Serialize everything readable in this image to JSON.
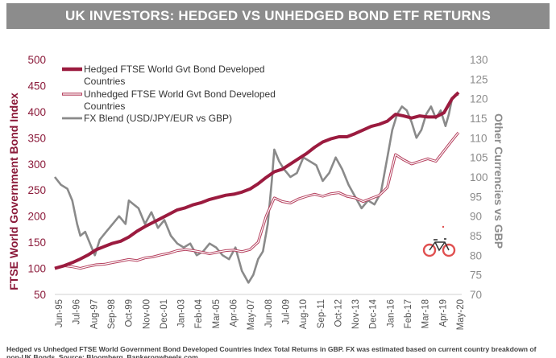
{
  "chart_data": {
    "type": "line",
    "title": "UK INVESTORS: HEDGED VS UNHEDGED BOND ETF RETURNS",
    "ylabel_left": "FTSE World Government Bond Index",
    "ylabel_right": "Other Currencies vs GBP",
    "ylim_left": [
      50,
      500
    ],
    "ylim_right": [
      70,
      130
    ],
    "yticks_left": [
      "50",
      "100",
      "150",
      "200",
      "250",
      "300",
      "350",
      "400",
      "450",
      "500"
    ],
    "yticks_right": [
      "70",
      "75",
      "80",
      "85",
      "90",
      "95",
      "100",
      "105",
      "110",
      "115",
      "120",
      "125",
      "130"
    ],
    "x_ticks": [
      "Jun-95",
      "Jul-96",
      "Aug-97",
      "Sep-98",
      "Oct-99",
      "Nov-00",
      "Dec-01",
      "Jan-03",
      "Feb-04",
      "Mar-05",
      "Apr-06",
      "May-07",
      "Jun-08",
      "Jul-09",
      "Aug-10",
      "Sep-11",
      "Oct-12",
      "Nov-13",
      "Dec-14",
      "Jan-16",
      "Feb-17",
      "Mar-18",
      "Apr-19",
      "May-20"
    ],
    "x_range": [
      1995.42,
      2020.6
    ],
    "series": [
      {
        "name": "Hedged FTSE World Gvt Bond Developed Countries",
        "axis": "left",
        "color": "#9b1b3f",
        "x": [
          1995.42,
          1996.0,
          1996.5,
          1997.0,
          1997.5,
          1998.0,
          1998.5,
          1999.0,
          1999.5,
          2000.0,
          2000.5,
          2001.0,
          2001.5,
          2002.0,
          2002.5,
          2003.0,
          2003.5,
          2004.0,
          2004.5,
          2005.0,
          2005.5,
          2006.0,
          2006.5,
          2007.0,
          2007.5,
          2008.0,
          2008.5,
          2009.0,
          2009.5,
          2010.0,
          2010.5,
          2011.0,
          2011.5,
          2012.0,
          2012.5,
          2013.0,
          2013.5,
          2014.0,
          2014.5,
          2015.0,
          2015.5,
          2016.0,
          2016.5,
          2017.0,
          2017.5,
          2018.0,
          2018.5,
          2019.0,
          2019.5,
          2020.0,
          2020.4
        ],
        "y": [
          100,
          105,
          111,
          118,
          126,
          136,
          142,
          148,
          152,
          160,
          171,
          180,
          188,
          196,
          204,
          212,
          216,
          222,
          226,
          232,
          236,
          240,
          242,
          246,
          252,
          262,
          274,
          285,
          290,
          300,
          310,
          320,
          332,
          342,
          348,
          352,
          352,
          358,
          365,
          372,
          376,
          382,
          395,
          392,
          388,
          392,
          390,
          390,
          398,
          425,
          437
        ]
      },
      {
        "name": "Unhedged FTSE World Gvt Bond Developed Countries",
        "axis": "left",
        "color": "#b5405e",
        "x": [
          1995.42,
          1996.0,
          1996.5,
          1997.0,
          1997.5,
          1998.0,
          1998.5,
          1999.0,
          1999.5,
          2000.0,
          2000.5,
          2001.0,
          2001.5,
          2002.0,
          2002.5,
          2003.0,
          2003.5,
          2004.0,
          2004.5,
          2005.0,
          2005.5,
          2006.0,
          2006.5,
          2007.0,
          2007.5,
          2008.0,
          2008.5,
          2009.0,
          2009.5,
          2010.0,
          2010.5,
          2011.0,
          2011.5,
          2012.0,
          2012.5,
          2013.0,
          2013.5,
          2014.0,
          2014.5,
          2015.0,
          2015.5,
          2016.0,
          2016.5,
          2017.0,
          2017.5,
          2018.0,
          2018.5,
          2019.0,
          2019.5,
          2020.0,
          2020.4
        ],
        "y": [
          100,
          105,
          103,
          100,
          104,
          107,
          108,
          111,
          114,
          117,
          115,
          120,
          122,
          126,
          129,
          134,
          136,
          134,
          131,
          128,
          131,
          134,
          135,
          132,
          136,
          150,
          200,
          235,
          228,
          225,
          233,
          238,
          242,
          238,
          243,
          245,
          238,
          235,
          228,
          234,
          240,
          255,
          318,
          308,
          300,
          305,
          310,
          305,
          325,
          345,
          360
        ]
      },
      {
        "name": "FX Blend (USD/JPY/EUR vs GBP)",
        "axis": "right",
        "color": "#8a8a8a",
        "x": [
          1995.42,
          1995.8,
          1996.2,
          1996.5,
          1996.8,
          1997.0,
          1997.3,
          1997.6,
          1997.9,
          1998.2,
          1998.6,
          1999.0,
          1999.4,
          1999.8,
          2000.0,
          2000.3,
          2000.6,
          2001.0,
          2001.4,
          2001.8,
          2002.2,
          2002.6,
          2003.0,
          2003.4,
          2003.8,
          2004.2,
          2004.6,
          2005.0,
          2005.4,
          2005.8,
          2006.2,
          2006.6,
          2007.0,
          2007.4,
          2007.7,
          2008.0,
          2008.3,
          2008.6,
          2008.85,
          2009.0,
          2009.3,
          2009.6,
          2010.0,
          2010.4,
          2010.8,
          2011.2,
          2011.6,
          2012.0,
          2012.4,
          2012.8,
          2013.2,
          2013.6,
          2014.0,
          2014.4,
          2014.8,
          2015.2,
          2015.6,
          2016.0,
          2016.3,
          2016.6,
          2016.9,
          2017.2,
          2017.5,
          2017.8,
          2018.1,
          2018.4,
          2018.7,
          2019.0,
          2019.3,
          2019.6,
          2019.8,
          2020.0,
          2020.2,
          2020.4
        ],
        "y": [
          100,
          98,
          97,
          94,
          88,
          85,
          86,
          83,
          80,
          84,
          86,
          88,
          90,
          88,
          94,
          93,
          92,
          88,
          91,
          87,
          89,
          85,
          83,
          82,
          83,
          80,
          81,
          83,
          82,
          80,
          79,
          82,
          76,
          73,
          75,
          79,
          81,
          88,
          99,
          107,
          104,
          102,
          100,
          101,
          105,
          104,
          103,
          99,
          101,
          105,
          102,
          98,
          95,
          92,
          94,
          93,
          96,
          105,
          112,
          116,
          118,
          117,
          114,
          110,
          112,
          116,
          118,
          115,
          117,
          113,
          116,
          120,
          121,
          121
        ]
      }
    ],
    "legend_position": "top-left",
    "grid": false
  },
  "footnote": "Hedged vs Unhedged FTSE World Government Bond Developed Countries Index Total Returns in GBP. FX was estimated based on current country breakdown of non-UK Bonds. Source: Bloomberg, Bankeronwheels.com",
  "colors": {
    "banner_bg": "#8c8c8c",
    "left_axis": "#8b1a3a",
    "right_axis": "#8c8c8c",
    "bike_wheel": "#e05050"
  },
  "watermark_icon": "bicycle-icon"
}
